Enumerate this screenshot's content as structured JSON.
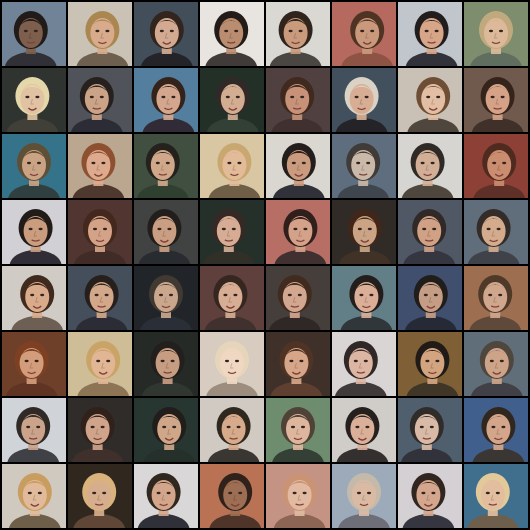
{
  "image": {
    "description_type": "generated-face-sample-grid",
    "rows": 8,
    "cols": 8,
    "tiles": [
      {
        "bg": "#6d8194",
        "skin": "#7a5a48",
        "hair": "#1a1512",
        "shirt": "#2a2a30"
      },
      {
        "bg": "#c9c2b3",
        "skin": "#d6a988",
        "hair": "#a8834c",
        "shirt": "#6b5a4a"
      },
      {
        "bg": "#3c4a56",
        "skin": "#d2a88e",
        "hair": "#2c1e16",
        "shirt": "#1c1c22"
      },
      {
        "bg": "#e8e4de",
        "skin": "#b88a6c",
        "hair": "#1b1411",
        "shirt": "#3a3532"
      },
      {
        "bg": "#d8d7d2",
        "skin": "#c89878",
        "hair": "#2a1d15",
        "shirt": "#45403b"
      },
      {
        "bg": "#b4665a",
        "skin": "#c99678",
        "hair": "#4a2e1c",
        "shirt": "#8a4e3e"
      },
      {
        "bg": "#bfc4cb",
        "skin": "#d6a486",
        "hair": "#1a1615",
        "shirt": "#2c2c35"
      },
      {
        "bg": "#7a8a6a",
        "skin": "#dbb796",
        "hair": "#bfa77a",
        "shirt": "#5a6a5a"
      },
      {
        "bg": "#2a2e2a",
        "skin": "#e0c2a0",
        "hair": "#e4d6a8",
        "shirt": "#3a3a33"
      },
      {
        "bg": "#4b4e55",
        "skin": "#caa084",
        "hair": "#1f1a17",
        "shirt": "#262630"
      },
      {
        "bg": "#4f7a9a",
        "skin": "#d2a48a",
        "hair": "#2d1c14",
        "shirt": "#2a2530"
      },
      {
        "bg": "#1c2a22",
        "skin": "#d2ab8e",
        "hair": "#2a2320",
        "shirt": "#2c3a30"
      },
      {
        "bg": "#4b3a3a",
        "skin": "#c68f74",
        "hair": "#3a2418",
        "shirt": "#3b2a2a"
      },
      {
        "bg": "#3c4a58",
        "skin": "#d6ab90",
        "hair": "#d9d2c4",
        "shirt": "#1c1c22"
      },
      {
        "bg": "#c8bfb4",
        "skin": "#e2bda2",
        "hair": "#6a4a30",
        "shirt": "#4a4038"
      },
      {
        "bg": "#6c5448",
        "skin": "#d49f84",
        "hair": "#2f1d15",
        "shirt": "#3a2a24"
      },
      {
        "bg": "#2f6f88",
        "skin": "#c8a080",
        "hair": "#5a4a30",
        "shirt": "#2a3a3a"
      },
      {
        "bg": "#b9a58c",
        "skin": "#dca88a",
        "hair": "#8a4c2c",
        "shirt": "#4a3328"
      },
      {
        "bg": "#3b4a3a",
        "skin": "#cfa686",
        "hair": "#1e1a16",
        "shirt": "#2a3a2a"
      },
      {
        "bg": "#d8c6a0",
        "skin": "#e2b996",
        "hair": "#c8a56c",
        "shirt": "#6a5a40"
      },
      {
        "bg": "#d9d6d0",
        "skin": "#c9987a",
        "hair": "#1c1614",
        "shirt": "#2b2b33"
      },
      {
        "bg": "#5a6a7a",
        "skin": "#c9b6a6",
        "hair": "#3a3530",
        "shirt": "#3a4048"
      },
      {
        "bg": "#d6d4d0",
        "skin": "#d2ac94",
        "hair": "#2a2420",
        "shirt": "#4a4038"
      },
      {
        "bg": "#8a3a30",
        "skin": "#c98a6c",
        "hair": "#4a2418",
        "shirt": "#5a2a22"
      },
      {
        "bg": "#cfcfd4",
        "skin": "#c99a7a",
        "hair": "#1b1512",
        "shirt": "#2b2730"
      },
      {
        "bg": "#4b2f2a",
        "skin": "#d3a184",
        "hair": "#3c2216",
        "shirt": "#3a2520"
      },
      {
        "bg": "#3a3d3c",
        "skin": "#c99b7e",
        "hair": "#1a1715",
        "shirt": "#22252a"
      },
      {
        "bg": "#1f2a24",
        "skin": "#d6aa92",
        "hair": "#2e231e",
        "shirt": "#2a2a22"
      },
      {
        "bg": "#b46a60",
        "skin": "#d39e86",
        "hair": "#2a1814",
        "shirt": "#3a2a2a"
      },
      {
        "bg": "#2a2520",
        "skin": "#caa282",
        "hair": "#3a2012",
        "shirt": "#3b2c22"
      },
      {
        "bg": "#4b5260",
        "skin": "#cf9e82",
        "hair": "#2a2320",
        "shirt": "#30303a"
      },
      {
        "bg": "#5b6a78",
        "skin": "#d4a98a",
        "hair": "#2d2622",
        "shirt": "#3a3c44"
      },
      {
        "bg": "#cfcbc4",
        "skin": "#d8a988",
        "hair": "#3a2416",
        "shirt": "#6a5a50"
      },
      {
        "bg": "#3e4a56",
        "skin": "#d2a586",
        "hair": "#1f1815",
        "shirt": "#25262f"
      },
      {
        "bg": "#1a1e24",
        "skin": "#c9a48a",
        "hair": "#3a342c",
        "shirt": "#242830"
      },
      {
        "bg": "#5a3a36",
        "skin": "#d6ab90",
        "hair": "#2f2018",
        "shirt": "#3a2a28"
      },
      {
        "bg": "#403834",
        "skin": "#d2a48c",
        "hair": "#3b2518",
        "shirt": "#2a2220"
      },
      {
        "bg": "#5d7a84",
        "skin": "#d9ac94",
        "hair": "#1c1614",
        "shirt": "#2a3034"
      },
      {
        "bg": "#3a4a6a",
        "skin": "#c49a82",
        "hair": "#1a1614",
        "shirt": "#1e2430"
      },
      {
        "bg": "#9a6a4a",
        "skin": "#cfa58a",
        "hair": "#4a3424",
        "shirt": "#5a4434"
      },
      {
        "bg": "#6a3a24",
        "skin": "#d29a78",
        "hair": "#7a3a1c",
        "shirt": "#5a2e1c"
      },
      {
        "bg": "#cdbb94",
        "skin": "#e0b492",
        "hair": "#c9a262",
        "shirt": "#8a7050"
      },
      {
        "bg": "#1e2420",
        "skin": "#c69a7e",
        "hair": "#1c1816",
        "shirt": "#2a302a"
      },
      {
        "bg": "#d6cbbd",
        "skin": "#efd6c0",
        "hair": "#e6d4b8",
        "shirt": "#9a8a7a"
      },
      {
        "bg": "#3a2a24",
        "skin": "#d6a486",
        "hair": "#4a2e1e",
        "shirt": "#5a3a2a"
      },
      {
        "bg": "#d8d4d4",
        "skin": "#dcb4a0",
        "hair": "#2a2020",
        "shirt": "#3a3434"
      },
      {
        "bg": "#7a5a30",
        "skin": "#d2a27c",
        "hair": "#1a1410",
        "shirt": "#3a3020"
      },
      {
        "bg": "#5a6a74",
        "skin": "#cda286",
        "hair": "#4a4038",
        "shirt": "#3a3a40"
      },
      {
        "bg": "#cfd2d6",
        "skin": "#caa088",
        "hair": "#2a2420",
        "shirt": "#3a3a42"
      },
      {
        "bg": "#2a2624",
        "skin": "#cfa088",
        "hair": "#2a1a14",
        "shirt": "#3a2a26"
      },
      {
        "bg": "#20302a",
        "skin": "#cfa486",
        "hair": "#1a1614",
        "shirt": "#1e2a24"
      },
      {
        "bg": "#cfc9c2",
        "skin": "#d6a888",
        "hair": "#2a2218",
        "shirt": "#34302c"
      },
      {
        "bg": "#6a8a6a",
        "skin": "#dcb49a",
        "hair": "#4a3c30",
        "shirt": "#2e3a30"
      },
      {
        "bg": "#cfcbc6",
        "skin": "#d9ae96",
        "hair": "#1e1816",
        "shirt": "#2e2a2a"
      },
      {
        "bg": "#4a5a6a",
        "skin": "#d8b8a4",
        "hair": "#2a2624",
        "shirt": "#2c2c34"
      },
      {
        "bg": "#3a5a8a",
        "skin": "#d2a488",
        "hair": "#2a2018",
        "shirt": "#34302e"
      },
      {
        "bg": "#cfc8bd",
        "skin": "#e0b898",
        "hair": "#c89a5a",
        "shirt": "#6a5a46"
      },
      {
        "bg": "#2a2018",
        "skin": "#d6ac8a",
        "hair": "#d8b078",
        "shirt": "#5a4030"
      },
      {
        "bg": "#d8d6d6",
        "skin": "#d2a488",
        "hair": "#2a2018",
        "shirt": "#2a2a32"
      },
      {
        "bg": "#b86e50",
        "skin": "#9a6a4e",
        "hair": "#2a1a14",
        "shirt": "#4a2e24"
      },
      {
        "bg": "#c49080",
        "skin": "#e0b89e",
        "hair": "#c89070",
        "shirt": "#8a6050"
      },
      {
        "bg": "#9aa8b8",
        "skin": "#dab8a2",
        "hair": "#c4b8a8",
        "shirt": "#6a6a74"
      },
      {
        "bg": "#d4cfd2",
        "skin": "#d2a48a",
        "hair": "#2a1e18",
        "shirt": "#30303a"
      },
      {
        "bg": "#3a6a8a",
        "skin": "#e2bc9c",
        "hair": "#e0c896",
        "shirt": "#6a5a48"
      }
    ]
  }
}
